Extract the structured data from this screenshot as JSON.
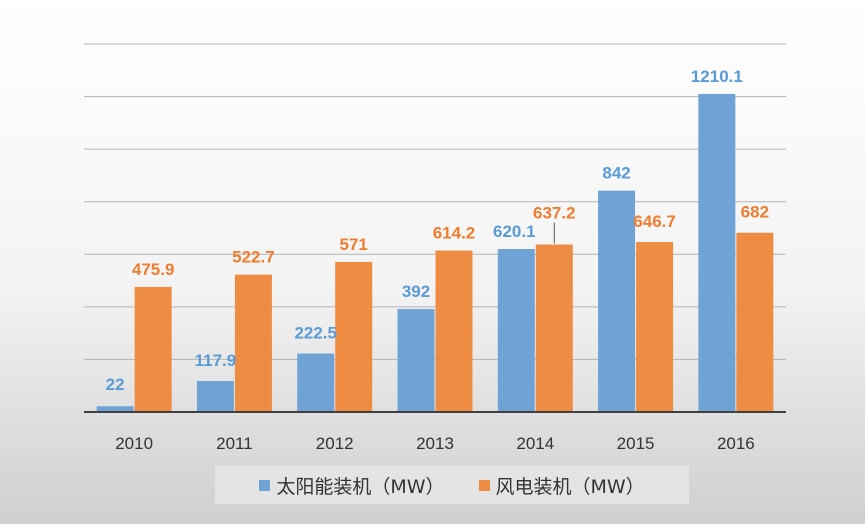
{
  "chart_data": {
    "type": "bar",
    "title": "",
    "xlabel": "",
    "ylabel": "",
    "categories": [
      "2010",
      "2011",
      "2012",
      "2013",
      "2014",
      "2015",
      "2016"
    ],
    "series": [
      {
        "name": "太阳能装机（MW）",
        "color": "#6fa3d6",
        "label_color": "#5b9bd5",
        "values": [
          22,
          117.9,
          222.5,
          392,
          620.1,
          842,
          1210.1
        ],
        "labels": [
          "22",
          "117.9",
          "222.5",
          "392",
          "620.1",
          "842",
          "1210.1"
        ]
      },
      {
        "name": "风电装机（MW）",
        "color": "#ef8c44",
        "label_color": "#ed7d31",
        "values": [
          475.9,
          522.7,
          571,
          614.2,
          637.2,
          646.7,
          682
        ],
        "labels": [
          "475.9",
          "522.7",
          "571",
          "614.2",
          "637.2",
          "646.7",
          "682"
        ]
      }
    ],
    "ylim": [
      0,
      1400
    ],
    "grid": true,
    "legend_position": "bottom"
  }
}
